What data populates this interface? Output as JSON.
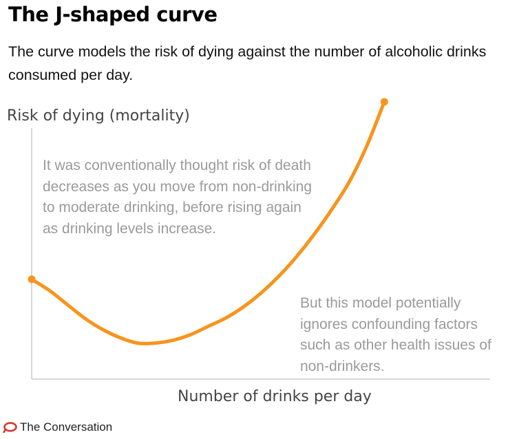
{
  "header": {
    "title": "The J-shaped curve",
    "subtitle": "The curve models the risk of dying against the number of alcoholic drinks consumed per day."
  },
  "chart_data": {
    "type": "line",
    "ylabel": "Risk of dying (mortality)",
    "xlabel": "Number of drinks per day",
    "x": [
      0,
      0.05,
      0.1,
      0.15,
      0.2,
      0.25,
      0.3,
      0.35,
      0.4,
      0.45,
      0.5,
      0.55,
      0.6,
      0.65,
      0.7,
      0.75,
      0.8,
      0.85,
      0.9,
      0.95,
      1.0
    ],
    "series": [
      {
        "values": [
          0.36,
          0.32,
          0.27,
          0.22,
          0.18,
          0.15,
          0.13,
          0.13,
          0.14,
          0.16,
          0.19,
          0.22,
          0.26,
          0.31,
          0.37,
          0.44,
          0.52,
          0.61,
          0.71,
          0.84,
          1.0
        ],
        "color": "#f7941d"
      }
    ],
    "xlim": [
      0,
      1.3
    ],
    "ylim": [
      0,
      1
    ],
    "grid": false,
    "endpoint_markers": true,
    "annotations": [
      "It was conventionally thought risk of death decreases as you move from non-drinking to moderate drinking, before rising again as drinking levels increase.",
      "But this model potentially ignores confounding factors such as other health issues of non-drinkers."
    ]
  },
  "footer": {
    "source": "The Conversation",
    "logo_color": "#d8352a"
  }
}
